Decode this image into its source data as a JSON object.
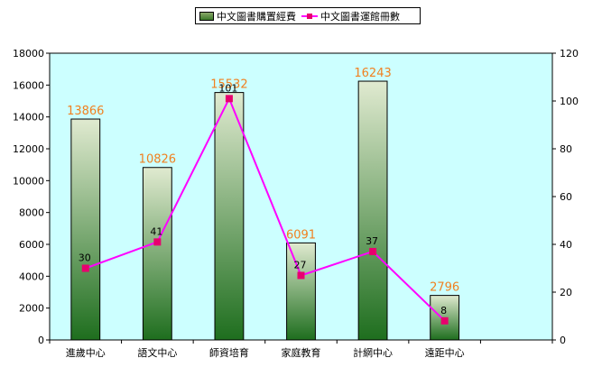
{
  "chart_data": {
    "type": "bar",
    "categories": [
      "進歲中心",
      "語文中心",
      "師資培育",
      "家庭教育",
      "計網中心",
      "遠距中心"
    ],
    "series": [
      {
        "name": "中文圖書購置經費",
        "type": "bar",
        "axis": "left",
        "values": [
          13866,
          10826,
          15532,
          6091,
          16243,
          2796
        ],
        "labels": [
          "13866",
          "10826",
          "15532",
          "6091",
          "16243",
          "2796"
        ]
      },
      {
        "name": "中文圖書運館冊數",
        "type": "line",
        "axis": "right",
        "values": [
          30,
          41,
          101,
          27,
          37,
          8
        ],
        "labels": [
          "30",
          "41",
          "101",
          "27",
          "37",
          "8"
        ]
      }
    ],
    "ylim_left": [
      0,
      18000
    ],
    "ylim_right": [
      0,
      120
    ],
    "yticks_left": [
      "0",
      "2000",
      "4000",
      "6000",
      "8000",
      "10000",
      "12000",
      "14000",
      "16000",
      "18000"
    ],
    "yticks_right": [
      "0",
      "20",
      "40",
      "60",
      "80",
      "100",
      "120"
    ],
    "plot_background": "#ccffff",
    "bar_color_top": "#e0ead0",
    "bar_color_bottom": "#1e6e1e",
    "line_color": "#ff00ff",
    "marker_color": "#e8006e",
    "bar_label_color": "#f08020",
    "legend_position": "top"
  }
}
